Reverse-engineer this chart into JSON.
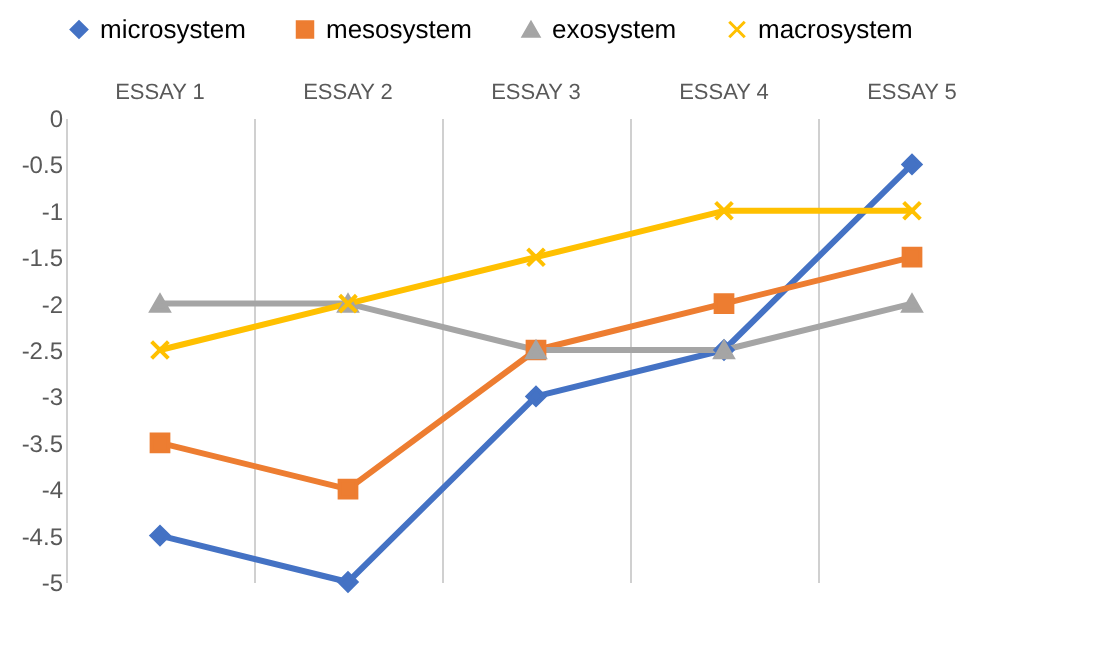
{
  "chart_data": {
    "type": "line",
    "categories": [
      "ESSAY 1",
      "ESSAY 2",
      "ESSAY 3",
      "ESSAY 4",
      "ESSAY 5"
    ],
    "series": [
      {
        "name": "microsystem",
        "color": "#4472c4",
        "marker": "diamond",
        "values": [
          -4.5,
          -5,
          -3,
          -2.5,
          -0.5
        ]
      },
      {
        "name": "mesosystem",
        "color": "#ed7d31",
        "marker": "square",
        "values": [
          -3.5,
          -4,
          -2.5,
          -2,
          -1.5
        ]
      },
      {
        "name": "exosystem",
        "color": "#a5a5a5",
        "marker": "triangle",
        "values": [
          -2,
          -2,
          -2.5,
          -2.5,
          -2
        ]
      },
      {
        "name": "macrosystem",
        "color": "#ffc000",
        "marker": "cross",
        "values": [
          -2.5,
          -2,
          -1.5,
          -1,
          -1
        ]
      }
    ],
    "ylim": [
      -5,
      0
    ],
    "yticks": [
      0,
      -0.5,
      -1,
      -1.5,
      -2,
      -2.5,
      -3,
      -3.5,
      -4,
      -4.5,
      -5
    ],
    "grid": "x",
    "legend": "top",
    "line_style": "solid"
  }
}
